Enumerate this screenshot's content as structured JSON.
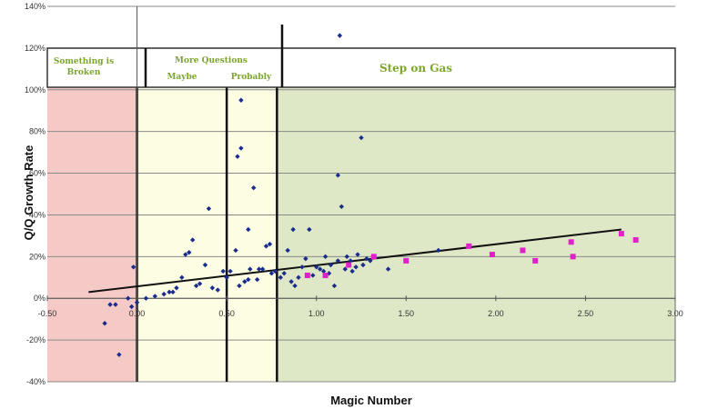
{
  "chart_data": {
    "type": "scatter",
    "xlabel": "Magic Number",
    "ylabel": "Q/Q Growth Rate",
    "xlim": [
      -0.5,
      3.0
    ],
    "ylim": [
      -0.4,
      1.4
    ],
    "x_ticks": [
      "-0.50",
      "0.00",
      "0.50",
      "1.00",
      "1.50",
      "2.00",
      "2.50",
      "3.00"
    ],
    "y_ticks": [
      "140%",
      "120%",
      "100%",
      "80%",
      "60%",
      "40%",
      "20%",
      "0%",
      "-20%",
      "-40%"
    ],
    "grid": "horizontal",
    "zones": [
      {
        "x_from": -0.5,
        "x_to": 0.0,
        "color": "#f5c9c6"
      },
      {
        "x_from": 0.0,
        "x_to": 0.78,
        "color": "#fdfde4"
      },
      {
        "x_from": 0.78,
        "x_to": 3.0,
        "color": "#dfe8c6"
      }
    ],
    "zone_labels": [
      "Something is Broken",
      "More Questions",
      "Maybe",
      "Probably",
      "Step on Gas"
    ],
    "threshold_lines_x": [
      0.0,
      0.5,
      0.78
    ],
    "trendline": {
      "x": [
        -0.27,
        2.7
      ],
      "y": [
        0.03,
        0.33
      ]
    },
    "series": [
      {
        "color": "#1a2c8c",
        "marker": "diamond",
        "points": [
          [
            -0.18,
            -0.12
          ],
          [
            -0.15,
            -0.03
          ],
          [
            -0.12,
            -0.03
          ],
          [
            -0.1,
            -0.27
          ],
          [
            -0.05,
            0.0
          ],
          [
            -0.03,
            -0.04
          ],
          [
            0.0,
            -0.02
          ],
          [
            -0.02,
            0.15
          ],
          [
            0.05,
            0.0
          ],
          [
            0.1,
            0.01
          ],
          [
            0.15,
            0.02
          ],
          [
            0.18,
            0.03
          ],
          [
            0.2,
            0.03
          ],
          [
            0.22,
            0.05
          ],
          [
            0.25,
            0.1
          ],
          [
            0.27,
            0.21
          ],
          [
            0.29,
            0.22
          ],
          [
            0.31,
            0.28
          ],
          [
            0.33,
            0.06
          ],
          [
            0.35,
            0.07
          ],
          [
            0.38,
            0.16
          ],
          [
            0.4,
            0.43
          ],
          [
            0.42,
            0.05
          ],
          [
            0.45,
            0.04
          ],
          [
            0.48,
            0.13
          ],
          [
            0.5,
            0.1
          ],
          [
            0.52,
            0.13
          ],
          [
            0.55,
            0.23
          ],
          [
            0.57,
            0.06
          ],
          [
            0.6,
            0.08
          ],
          [
            0.62,
            0.09
          ],
          [
            0.56,
            0.68
          ],
          [
            0.58,
            0.72
          ],
          [
            0.58,
            0.95
          ],
          [
            0.62,
            0.33
          ],
          [
            0.63,
            0.14
          ],
          [
            0.65,
            0.53
          ],
          [
            0.67,
            0.09
          ],
          [
            0.68,
            0.14
          ],
          [
            0.7,
            0.14
          ],
          [
            0.72,
            0.25
          ],
          [
            0.74,
            0.26
          ],
          [
            0.75,
            0.12
          ],
          [
            0.77,
            0.13
          ],
          [
            0.8,
            0.1
          ],
          [
            0.82,
            0.12
          ],
          [
            0.84,
            0.23
          ],
          [
            0.86,
            0.08
          ],
          [
            0.87,
            0.33
          ],
          [
            0.88,
            0.06
          ],
          [
            0.9,
            0.1
          ],
          [
            0.92,
            0.15
          ],
          [
            0.94,
            0.19
          ],
          [
            0.96,
            0.33
          ],
          [
            0.98,
            0.11
          ],
          [
            1.0,
            0.15
          ],
          [
            1.02,
            0.14
          ],
          [
            1.04,
            0.13
          ],
          [
            1.05,
            0.2
          ],
          [
            1.07,
            0.12
          ],
          [
            1.08,
            0.16
          ],
          [
            1.1,
            0.06
          ],
          [
            1.12,
            0.18
          ],
          [
            1.12,
            0.59
          ],
          [
            1.14,
            0.44
          ],
          [
            1.13,
            1.26
          ],
          [
            1.16,
            0.14
          ],
          [
            1.17,
            0.2
          ],
          [
            1.19,
            0.18
          ],
          [
            1.2,
            0.13
          ],
          [
            1.22,
            0.15
          ],
          [
            1.23,
            0.21
          ],
          [
            1.25,
            0.77
          ],
          [
            1.26,
            0.16
          ],
          [
            1.28,
            0.19
          ],
          [
            1.3,
            0.18
          ],
          [
            1.4,
            0.14
          ],
          [
            1.68,
            0.23
          ]
        ]
      },
      {
        "color": "#e020c8",
        "marker": "square",
        "points": [
          [
            0.95,
            0.11
          ],
          [
            1.05,
            0.11
          ],
          [
            1.18,
            0.16
          ],
          [
            1.32,
            0.2
          ],
          [
            1.5,
            0.18
          ],
          [
            1.85,
            0.25
          ],
          [
            1.98,
            0.21
          ],
          [
            2.15,
            0.23
          ],
          [
            2.22,
            0.18
          ],
          [
            2.42,
            0.27
          ],
          [
            2.43,
            0.2
          ],
          [
            2.7,
            0.31
          ],
          [
            2.78,
            0.28
          ]
        ]
      }
    ]
  }
}
